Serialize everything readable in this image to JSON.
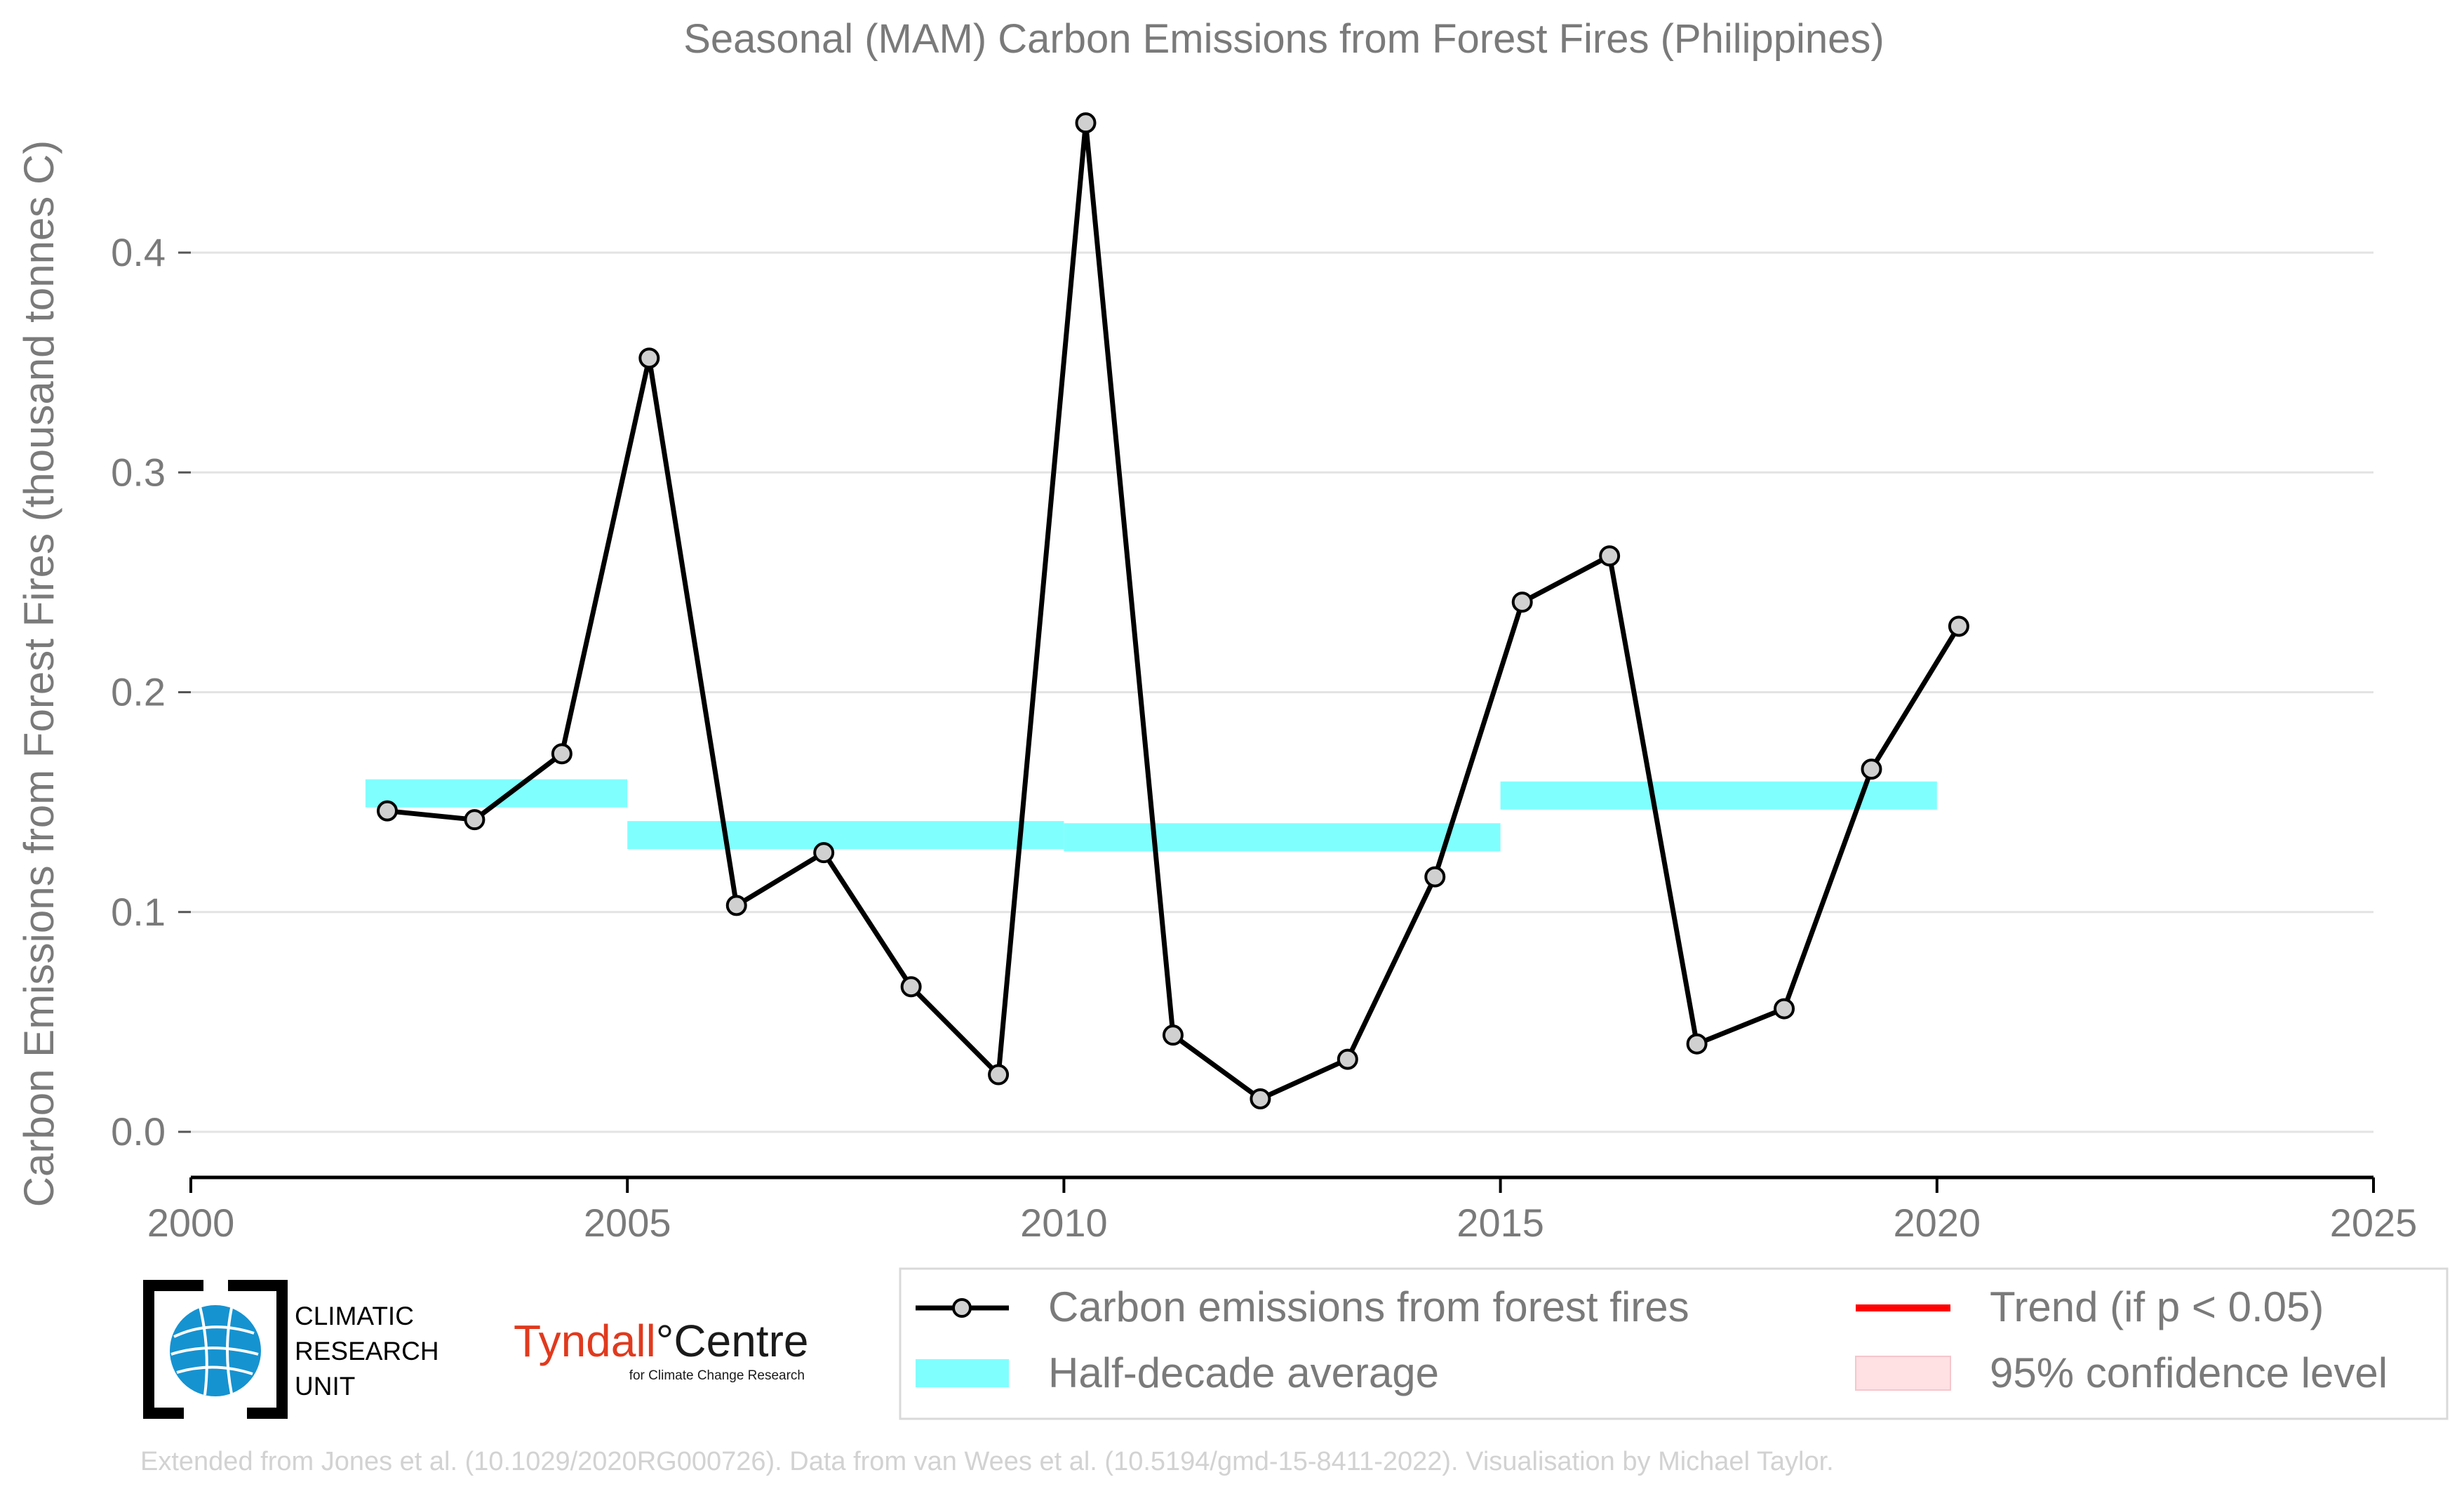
{
  "chart_data": {
    "type": "line",
    "title": "Seasonal (MAM) Carbon Emissions from Forest Fires (Philippines)",
    "xlabel": "",
    "ylabel": "Carbon Emissions from Forest Fires (thousand tonnes C)",
    "xlim": [
      2000,
      2025
    ],
    "ylim": [
      0.0,
      0.46
    ],
    "x_ticks": [
      2000,
      2005,
      2010,
      2015,
      2020,
      2025
    ],
    "x_tick_labels": [
      "2000",
      "2005",
      "2010",
      "2015",
      "2020",
      "2025"
    ],
    "y_ticks": [
      0.0,
      0.1,
      0.2,
      0.3,
      0.4
    ],
    "y_tick_labels": [
      "0.0",
      "0.1",
      "0.2",
      "0.3",
      "0.4"
    ],
    "grid": "horizontal",
    "legend_placement": "bottom-right",
    "series": [
      {
        "name": "Carbon emissions from forest fires",
        "color": "#000000",
        "x": [
          2002.25,
          2003.25,
          2004.25,
          2005.25,
          2006.25,
          2007.25,
          2008.25,
          2009.25,
          2010.25,
          2011.25,
          2012.25,
          2013.25,
          2014.25,
          2015.25,
          2016.25,
          2017.25,
          2018.25,
          2019.25,
          2020.25
        ],
        "values": [
          0.146,
          0.142,
          0.172,
          0.352,
          0.103,
          0.127,
          0.066,
          0.026,
          0.459,
          0.044,
          0.015,
          0.033,
          0.116,
          0.241,
          0.262,
          0.04,
          0.056,
          0.165,
          0.23
        ]
      }
    ],
    "half_decade_average": {
      "name": "Half-decade average",
      "color": "#80ffff",
      "segments": [
        {
          "x_start": 2002,
          "x_end": 2005,
          "value": 0.154
        },
        {
          "x_start": 2005,
          "x_end": 2010,
          "value": 0.135
        },
        {
          "x_start": 2010,
          "x_end": 2015,
          "value": 0.134
        },
        {
          "x_start": 2015,
          "x_end": 2020,
          "value": 0.153
        }
      ]
    },
    "legend": [
      {
        "label": "Carbon emissions from forest fires",
        "type": "line-marker",
        "color": "#000000"
      },
      {
        "label": "Half-decade average",
        "type": "band",
        "color": "#80ffff"
      },
      {
        "label": "Trend (if p < 0.05)",
        "type": "line",
        "color": "#ff0000"
      },
      {
        "label": "95% confidence level",
        "type": "patch",
        "color": "#ffe0e3"
      }
    ]
  },
  "logos": {
    "cru": {
      "line1": "CLIMATIC",
      "line2": "RESEARCH",
      "line3": "UNIT",
      "icon": "globe-icon"
    },
    "tyndall": {
      "part1": "Tyndall",
      "part2": "°Centre",
      "subtitle": "for Climate Change Research"
    }
  },
  "credit": "Extended from Jones et al. (10.1029/2020RG000726). Data from van Wees et al. (10.5194/gmd-15-8411-2022). Visualisation by Michael Taylor."
}
